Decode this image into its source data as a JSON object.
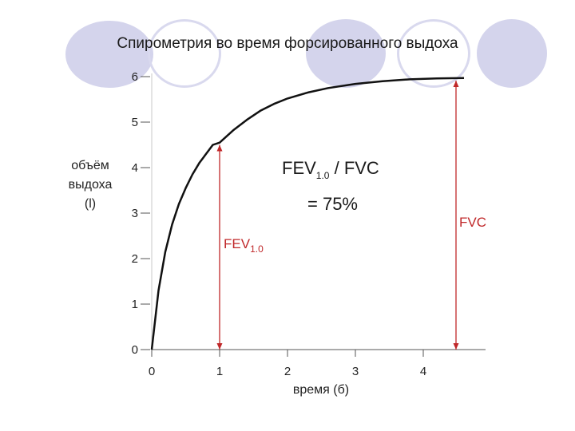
{
  "page": {
    "title": "Спирометрия во время форсированного выдоха"
  },
  "chart_data": {
    "type": "line",
    "xlabel": "время (б)",
    "ylabel": [
      "объём",
      "выдоха",
      "(l)"
    ],
    "xlim": [
      0,
      4.8
    ],
    "ylim": [
      0,
      6
    ],
    "x_ticks": [
      "0",
      "1",
      "2",
      "3",
      "4"
    ],
    "y_ticks": [
      "0",
      "1",
      "2",
      "3",
      "4",
      "5",
      "6"
    ],
    "grid": false,
    "series": [
      {
        "x": [
          0,
          0.1,
          0.2,
          0.3,
          0.4,
          0.5,
          0.6,
          0.7,
          0.8,
          0.9,
          1.0,
          1.2,
          1.4,
          1.6,
          1.8,
          2.0,
          2.3,
          2.6,
          3.0,
          3.4,
          3.8,
          4.2,
          4.6
        ],
        "y": [
          0,
          1.3,
          2.15,
          2.75,
          3.2,
          3.55,
          3.85,
          4.1,
          4.3,
          4.5,
          4.55,
          4.82,
          5.05,
          5.25,
          5.4,
          5.52,
          5.65,
          5.75,
          5.84,
          5.9,
          5.94,
          5.96,
          5.97
        ]
      }
    ],
    "annotations": {
      "ratio_main": "FEV",
      "ratio_sub": "1.0",
      "ratio_rest": " / FVC",
      "ratio_value": "= 75%",
      "fev_main": "FEV",
      "fev_sub": "1.0",
      "fvc": "FVC",
      "fev_x": 1.0,
      "fev_value": 4.5,
      "fvc_x": 4.5,
      "fvc_value": 6.0
    },
    "colors": {
      "curve": "#111111",
      "markers": "#c0282a",
      "axis": "#555555"
    }
  }
}
